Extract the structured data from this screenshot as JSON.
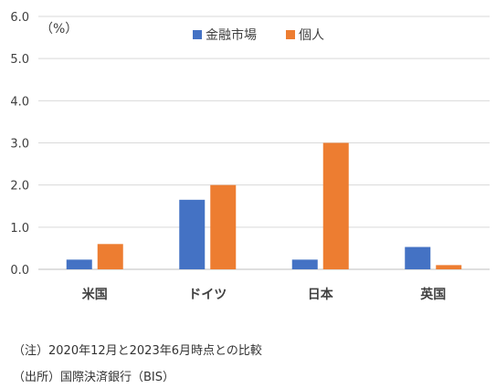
{
  "chart_data": {
    "type": "bar",
    "unit_label": "（%）",
    "categories": [
      "米国",
      "ドイツ",
      "日本",
      "英国"
    ],
    "series": [
      {
        "name": "金融市場",
        "color": "#4472c4",
        "values": [
          0.23,
          1.65,
          0.23,
          0.53
        ]
      },
      {
        "name": "個人",
        "color": "#ed7d31",
        "values": [
          0.6,
          2.0,
          3.0,
          0.1
        ]
      }
    ],
    "ylim": [
      0,
      6.0
    ],
    "yticks": [
      "0.0",
      "1.0",
      "2.0",
      "3.0",
      "4.0",
      "5.0",
      "6.0"
    ],
    "grid": true,
    "legend_position": "top-center"
  },
  "notes": {
    "note": "（注）2020年12月と2023年6月時点との比較",
    "source": "（出所）国際決済銀行（BIS）"
  }
}
